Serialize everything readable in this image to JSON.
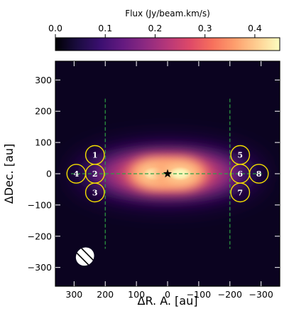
{
  "chart_data": {
    "type": "heatmap",
    "colorbar": {
      "label": "Flux (Jy/beam.km/s)",
      "ticks": [
        "0.0",
        "0.1",
        "0.2",
        "0.3",
        "0.4"
      ],
      "tick_values": [
        0.0,
        0.1,
        0.2,
        0.3,
        0.4
      ],
      "range": [
        0.0,
        0.45
      ],
      "colormap": [
        "#000004",
        "#1b0c41",
        "#3b0f70",
        "#641a80",
        "#8c2981",
        "#b73779",
        "#de4968",
        "#f7705c",
        "#fe9f6d",
        "#fecf92",
        "#fcfdbf"
      ],
      "position": "top"
    },
    "xlabel": "ΔR. A.  [au]",
    "ylabel": "ΔDec.  [au]",
    "xlim": [
      360,
      -360
    ],
    "ylim": [
      -360,
      360
    ],
    "x_ticks": [
      "300",
      "200",
      "100",
      "0",
      "−100",
      "−200",
      "−300"
    ],
    "x_tick_values": [
      300,
      200,
      100,
      0,
      -100,
      -200,
      -300
    ],
    "y_ticks": [
      "300",
      "200",
      "100",
      "0",
      "−100",
      "−200",
      "−300"
    ],
    "y_tick_values": [
      300,
      200,
      100,
      0,
      -100,
      -200,
      -300
    ],
    "emission_peaks": [
      {
        "x": 40,
        "y": 0,
        "flux": 0.45
      },
      {
        "x": -40,
        "y": 0,
        "flux": 0.45
      }
    ],
    "star": {
      "x": 0,
      "y": 0
    },
    "midplane_line": {
      "x_from": 310,
      "x_to": -310,
      "y": 0,
      "color": "#2ea043"
    },
    "vertical_lines": [
      {
        "x": 200,
        "y_from": -240,
        "y_to": 240,
        "color": "#2ea043"
      },
      {
        "x": -200,
        "y_from": -240,
        "y_to": 240,
        "color": "#2ea043"
      }
    ],
    "apertures": [
      {
        "label": "1",
        "x": 233,
        "y": 60
      },
      {
        "label": "2",
        "x": 233,
        "y": 0
      },
      {
        "label": "3",
        "x": 233,
        "y": -60
      },
      {
        "label": "4",
        "x": 293,
        "y": 0
      },
      {
        "label": "5",
        "x": -233,
        "y": 60
      },
      {
        "label": "6",
        "x": -233,
        "y": 0
      },
      {
        "label": "7",
        "x": -233,
        "y": -60
      },
      {
        "label": "8",
        "x": -293,
        "y": 0
      }
    ],
    "aperture_radius_au": 30,
    "aperture_color": "#f5e000",
    "beam": {
      "x": 265,
      "y": -265,
      "major_au": 55,
      "minor_au": 50,
      "pa_deg": 45
    }
  }
}
